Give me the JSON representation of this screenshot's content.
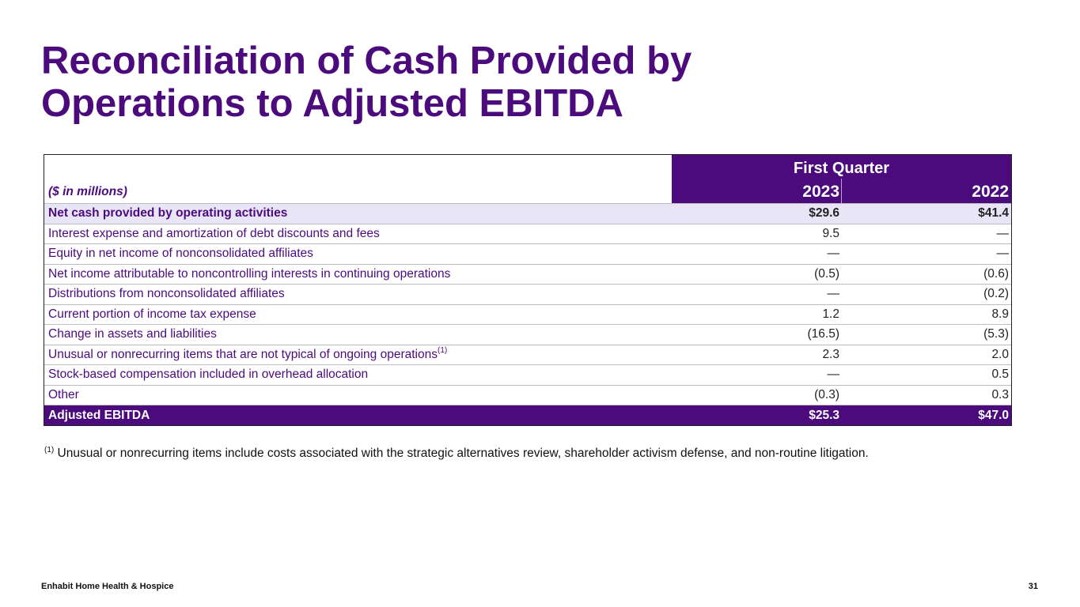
{
  "title": {
    "line1": "Reconciliation of Cash Provided by",
    "line2": "Operations to Adjusted EBITDA"
  },
  "table": {
    "units_label": "($ in millions)",
    "group_header": "First Quarter",
    "col1": "2023",
    "col2": "2022",
    "rows": [
      {
        "label": "Net cash provided by operating activities",
        "v2023": "$29.6",
        "v2022": "$41.4",
        "sup": ""
      },
      {
        "label": "Interest expense and amortization of debt discounts and fees",
        "v2023": "9.5",
        "v2022": "—",
        "sup": ""
      },
      {
        "label": "Equity in net income of nonconsolidated affiliates",
        "v2023": "—",
        "v2022": "—",
        "sup": ""
      },
      {
        "label": "Net income attributable to noncontrolling interests in continuing operations",
        "v2023": "(0.5)",
        "v2022": "(0.6)",
        "sup": ""
      },
      {
        "label": "Distributions from nonconsolidated affiliates",
        "v2023": "—",
        "v2022": "(0.2)",
        "sup": ""
      },
      {
        "label": "Current portion of income tax expense",
        "v2023": "1.2",
        "v2022": "8.9",
        "sup": ""
      },
      {
        "label": "Change in assets and liabilities",
        "v2023": "(16.5)",
        "v2022": "(5.3)",
        "sup": ""
      },
      {
        "label": "Unusual or nonrecurring items that are not typical of ongoing operations",
        "v2023": "2.3",
        "v2022": "2.0",
        "sup": "(1)"
      },
      {
        "label": "Stock-based compensation included in overhead allocation",
        "v2023": "—",
        "v2022": "0.5",
        "sup": ""
      },
      {
        "label": "Other",
        "v2023": "(0.3)",
        "v2022": "0.3",
        "sup": ""
      },
      {
        "label": "Adjusted EBITDA",
        "v2023": "$25.3",
        "v2022": "$47.0",
        "sup": ""
      }
    ]
  },
  "footnote": {
    "marker": "(1)",
    "text": " Unusual or nonrecurring items include costs associated with the strategic alternatives review, shareholder activism defense, and non-routine litigation."
  },
  "footer": {
    "brand": "Enhabit Home Health & Hospice",
    "page": "31"
  },
  "colors": {
    "brand_purple": "#4b0b7d",
    "highlight_row": "#e8e6f6"
  }
}
